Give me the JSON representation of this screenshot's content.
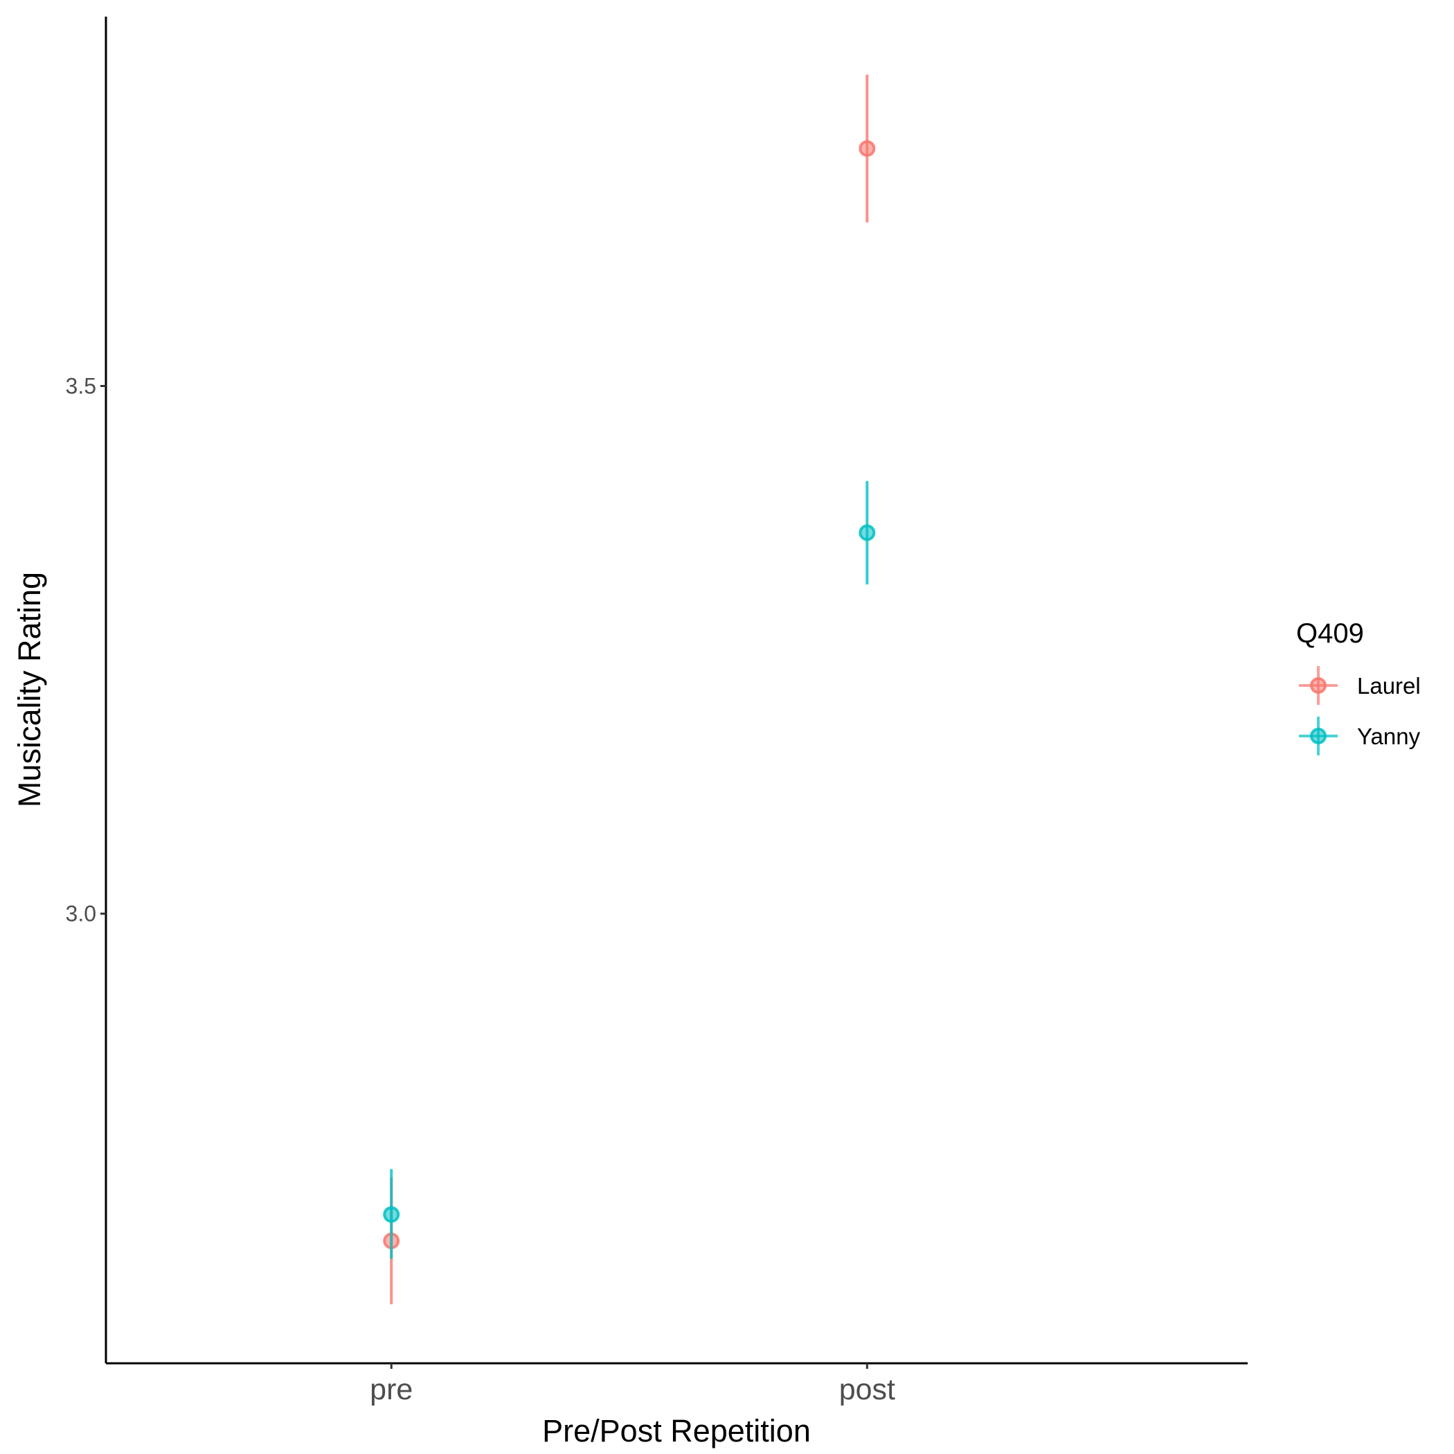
{
  "chart_data": {
    "type": "scatter",
    "subtype": "point-with-errorbars",
    "title": "",
    "xlabel": "Pre/Post Repetition",
    "ylabel": "Musicality Rating",
    "categories": [
      "pre",
      "post"
    ],
    "y_ticks": [
      3.0,
      3.5
    ],
    "y_tick_labels": [
      "3.0",
      "3.5"
    ],
    "ylim": [
      2.574,
      3.85
    ],
    "grid": false,
    "legend": {
      "title": "Q409",
      "placement": "right"
    },
    "series": [
      {
        "name": "Laurel",
        "color": "#F8766D",
        "values": [
          2.69,
          3.725
        ],
        "lower": [
          2.63,
          3.655
        ],
        "upper": [
          2.75,
          3.795
        ]
      },
      {
        "name": "Yanny",
        "color": "#00BFC4",
        "values": [
          2.715,
          3.361
        ],
        "lower": [
          2.673,
          3.312
        ],
        "upper": [
          2.758,
          3.41
        ]
      }
    ]
  }
}
